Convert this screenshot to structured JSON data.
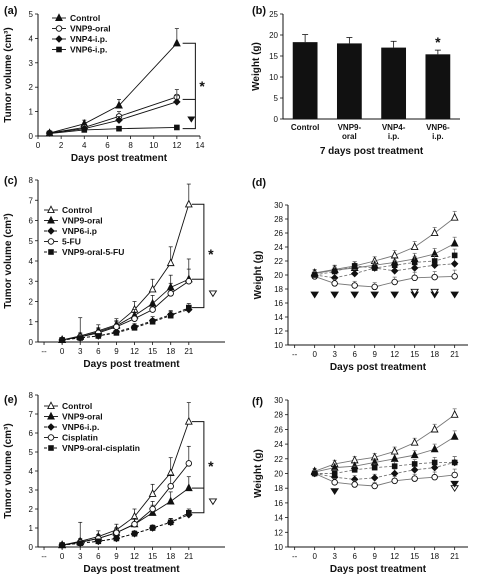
{
  "chart_data": [
    {
      "panel": "(a)",
      "type": "line",
      "x": [
        1,
        4,
        7,
        12
      ],
      "series": [
        {
          "name": "Control",
          "values": [
            0.12,
            0.5,
            1.25,
            3.8
          ],
          "err": [
            0.05,
            0.15,
            0.25,
            0.6
          ]
        },
        {
          "name": "VNP9-oral",
          "values": [
            0.12,
            0.35,
            0.8,
            1.6
          ],
          "err": [
            0.05,
            0.12,
            0.2,
            0.3
          ]
        },
        {
          "name": "VNP4-i.p.",
          "values": [
            0.12,
            0.3,
            0.65,
            1.4
          ],
          "err": [
            0.05,
            0.1,
            0.15,
            0.25
          ]
        },
        {
          "name": "VNP6-i.p.",
          "values": [
            0.1,
            0.25,
            0.3,
            0.35
          ],
          "err": [
            0.04,
            0.08,
            0.08,
            0.08
          ]
        }
      ],
      "xlabel": "Days post treatment",
      "ylabel": "Tumor volume (cm³)",
      "xlim": [
        0,
        14
      ],
      "ylim": [
        0,
        5
      ],
      "xticks": [
        "0",
        "2",
        "4",
        "6",
        "8",
        "10",
        "12",
        "14"
      ],
      "yticks": [
        "0",
        "1",
        "2",
        "3",
        "4",
        "5"
      ],
      "legend": "top-left",
      "annotations": [
        "*"
      ]
    },
    {
      "panel": "(b)",
      "type": "bar",
      "categories": [
        "Control",
        "VNP9-oral",
        "VNP4-i.p.",
        "VNP6-i.p."
      ],
      "category_lines": [
        [
          "Control"
        ],
        [
          "VNP9-",
          "oral"
        ],
        [
          "VNP4-",
          "i.p."
        ],
        [
          "VNP6-",
          "i.p."
        ]
      ],
      "values": [
        18.3,
        18.0,
        17.0,
        15.4
      ],
      "err": [
        1.8,
        1.4,
        1.5,
        1.0
      ],
      "xlabel": "7 days post treatment",
      "ylabel": "Weight (g)",
      "ylim": [
        0,
        25
      ],
      "yticks": [
        "0",
        "5",
        "10",
        "15",
        "20",
        "25"
      ],
      "annotations": [
        "*"
      ]
    },
    {
      "panel": "(c)",
      "type": "line",
      "x": [
        0,
        3,
        6,
        9,
        12,
        15,
        18,
        21
      ],
      "series": [
        {
          "name": "Control",
          "values": [
            0.1,
            0.3,
            0.55,
            0.85,
            1.6,
            2.6,
            3.9,
            6.8
          ],
          "err": [
            0.05,
            0.9,
            0.3,
            0.3,
            0.4,
            0.5,
            0.8,
            1.0
          ]
        },
        {
          "name": "VNP9-oral",
          "values": [
            0.1,
            0.25,
            0.5,
            0.8,
            1.3,
            1.9,
            2.7,
            3.1
          ],
          "err": [
            0.05,
            0.2,
            0.2,
            0.25,
            0.3,
            0.4,
            0.6,
            1.0
          ]
        },
        {
          "name": "VNP6-i.p",
          "values": [
            0.1,
            0.2,
            0.3,
            0.5,
            0.75,
            1.05,
            1.35,
            1.6
          ],
          "err": [
            0.04,
            0.1,
            0.1,
            0.15,
            0.15,
            0.2,
            0.2,
            0.2
          ]
        },
        {
          "name": "5-FU",
          "values": [
            0.1,
            0.25,
            0.45,
            0.75,
            1.15,
            1.6,
            2.4,
            3.0
          ],
          "err": [
            0.05,
            0.15,
            0.2,
            0.25,
            0.3,
            0.35,
            0.5,
            0.6
          ]
        },
        {
          "name": "VNP9-oral-5-FU",
          "values": [
            0.1,
            0.2,
            0.3,
            0.45,
            0.7,
            1.0,
            1.3,
            1.7
          ],
          "err": [
            0.04,
            0.1,
            0.1,
            0.12,
            0.15,
            0.15,
            0.2,
            0.2
          ]
        }
      ],
      "xlabel": "Days post treatment",
      "ylabel": "Tumor volume (cm³)",
      "xlim": [
        -4,
        27
      ],
      "ylim": [
        0,
        8
      ],
      "xticks": [
        "--",
        "0",
        "3",
        "6",
        "9",
        "12",
        "15",
        "18",
        "21"
      ],
      "yticks": [
        "0",
        "1",
        "2",
        "3",
        "4",
        "5",
        "6",
        "7",
        "8"
      ],
      "legend": "top-left",
      "annotations": [
        "*"
      ]
    },
    {
      "panel": "(d)",
      "type": "line",
      "x": [
        0,
        3,
        6,
        9,
        12,
        15,
        18,
        21
      ],
      "series": [
        {
          "values": [
            20.3,
            20.8,
            21.3,
            22.0,
            22.8,
            24.0,
            26.0,
            28.2
          ],
          "err": [
            0.5,
            0.6,
            0.6,
            0.6,
            0.7,
            0.8,
            0.8,
            0.9
          ]
        },
        {
          "values": [
            20.2,
            20.7,
            21.0,
            21.4,
            21.8,
            22.3,
            23.0,
            24.5
          ],
          "err": [
            0.5,
            0.6,
            0.6,
            0.6,
            0.7,
            0.8,
            0.8,
            0.9
          ]
        },
        {
          "values": [
            20.0,
            19.6,
            20.2,
            21.0,
            20.6,
            21.0,
            21.4,
            21.6
          ],
          "err": [
            0.5,
            0.6,
            0.6,
            0.6,
            0.7,
            0.8,
            0.8,
            0.9
          ]
        },
        {
          "values": [
            19.8,
            18.8,
            18.5,
            18.3,
            19.0,
            19.6,
            19.7,
            19.8
          ],
          "err": [
            0.5,
            0.6,
            0.6,
            0.6,
            0.7,
            0.8,
            0.8,
            0.9
          ]
        },
        {
          "values": [
            20.0,
            20.5,
            21.3,
            21.0,
            21.4,
            21.8,
            22.0,
            22.8
          ],
          "err": [
            0.5,
            0.6,
            0.6,
            0.6,
            0.7,
            0.8,
            0.8,
            0.9
          ]
        }
      ],
      "xlabel": "Days post treatment",
      "ylabel": "Weight (g)",
      "xlim": [
        -4,
        23
      ],
      "ylim": [
        10,
        30
      ],
      "xticks": [
        "--",
        "0",
        "3",
        "6",
        "9",
        "12",
        "15",
        "18",
        "21"
      ],
      "yticks": [
        "10",
        "12",
        "14",
        "16",
        "18",
        "20",
        "22",
        "24",
        "26",
        "28",
        "30"
      ]
    },
    {
      "panel": "(e)",
      "type": "line",
      "x": [
        0,
        3,
        6,
        9,
        12,
        15,
        18,
        21
      ],
      "series": [
        {
          "name": "Control",
          "values": [
            0.1,
            0.3,
            0.55,
            0.9,
            1.6,
            2.8,
            3.9,
            6.6
          ],
          "err": [
            0.05,
            1.0,
            0.3,
            0.3,
            0.4,
            0.5,
            0.8,
            1.0
          ]
        },
        {
          "name": "VNP9-oral",
          "values": [
            0.1,
            0.25,
            0.45,
            0.75,
            1.2,
            1.8,
            2.4,
            3.1
          ],
          "err": [
            0.05,
            0.2,
            0.2,
            0.25,
            0.3,
            0.4,
            0.5,
            0.6
          ]
        },
        {
          "name": "VNP6-i.p.",
          "values": [
            0.1,
            0.2,
            0.3,
            0.45,
            0.7,
            1.0,
            1.3,
            1.7
          ],
          "err": [
            0.04,
            0.1,
            0.1,
            0.12,
            0.15,
            0.15,
            0.2,
            0.2
          ]
        },
        {
          "name": "Cisplatin",
          "values": [
            0.1,
            0.25,
            0.45,
            0.75,
            1.2,
            2.0,
            3.2,
            4.4
          ],
          "err": [
            0.05,
            0.15,
            0.2,
            0.25,
            0.3,
            0.4,
            0.6,
            0.9
          ]
        },
        {
          "name": "VNP9-oral-cisplatin",
          "values": [
            0.1,
            0.2,
            0.3,
            0.45,
            0.7,
            1.0,
            1.3,
            1.8
          ],
          "err": [
            0.04,
            0.1,
            0.1,
            0.12,
            0.15,
            0.15,
            0.2,
            0.2
          ]
        }
      ],
      "xlabel": "Days post treatment",
      "ylabel": "Tumor volume (cm³)",
      "xlim": [
        -4,
        27
      ],
      "ylim": [
        0,
        8
      ],
      "xticks": [
        "--",
        "0",
        "3",
        "6",
        "9",
        "12",
        "15",
        "18",
        "21"
      ],
      "yticks": [
        "0",
        "1",
        "2",
        "3",
        "4",
        "5",
        "6",
        "7",
        "8"
      ],
      "legend": "top-left",
      "annotations": [
        "*"
      ]
    },
    {
      "panel": "(f)",
      "type": "line",
      "x": [
        0,
        3,
        6,
        9,
        12,
        15,
        18,
        21
      ],
      "series": [
        {
          "values": [
            20.3,
            21.3,
            21.8,
            22.2,
            23.0,
            24.2,
            26.0,
            28.0
          ],
          "err": [
            0.4,
            0.5,
            0.5,
            0.5,
            0.6,
            0.6,
            0.7,
            0.8
          ]
        },
        {
          "values": [
            20.2,
            20.8,
            21.0,
            21.5,
            22.0,
            22.5,
            23.3,
            25.0
          ],
          "err": [
            0.4,
            0.5,
            0.5,
            0.5,
            0.6,
            0.6,
            0.7,
            0.8
          ]
        },
        {
          "values": [
            20.0,
            19.5,
            19.2,
            19.4,
            20.0,
            20.5,
            20.8,
            21.5
          ],
          "err": [
            0.4,
            0.5,
            0.5,
            0.5,
            0.6,
            0.6,
            0.7,
            0.8
          ]
        },
        {
          "values": [
            20.0,
            18.8,
            18.5,
            18.3,
            19.0,
            19.3,
            19.5,
            19.8
          ],
          "err": [
            0.4,
            0.5,
            0.5,
            0.5,
            0.6,
            0.6,
            0.7,
            0.8
          ]
        },
        {
          "values": [
            20.0,
            20.0,
            20.5,
            20.8,
            21.0,
            21.3,
            21.5,
            21.5
          ],
          "err": [
            0.4,
            0.5,
            0.5,
            0.5,
            0.6,
            0.6,
            0.7,
            0.8
          ]
        }
      ],
      "xlabel": "Days post treatment",
      "ylabel": "Weight (g)",
      "xlim": [
        -4,
        23
      ],
      "ylim": [
        10,
        30
      ],
      "xticks": [
        "--",
        "0",
        "3",
        "6",
        "9",
        "12",
        "15",
        "18",
        "21"
      ],
      "yticks": [
        "10",
        "12",
        "14",
        "16",
        "18",
        "20",
        "22",
        "24",
        "26",
        "28",
        "30"
      ]
    }
  ]
}
